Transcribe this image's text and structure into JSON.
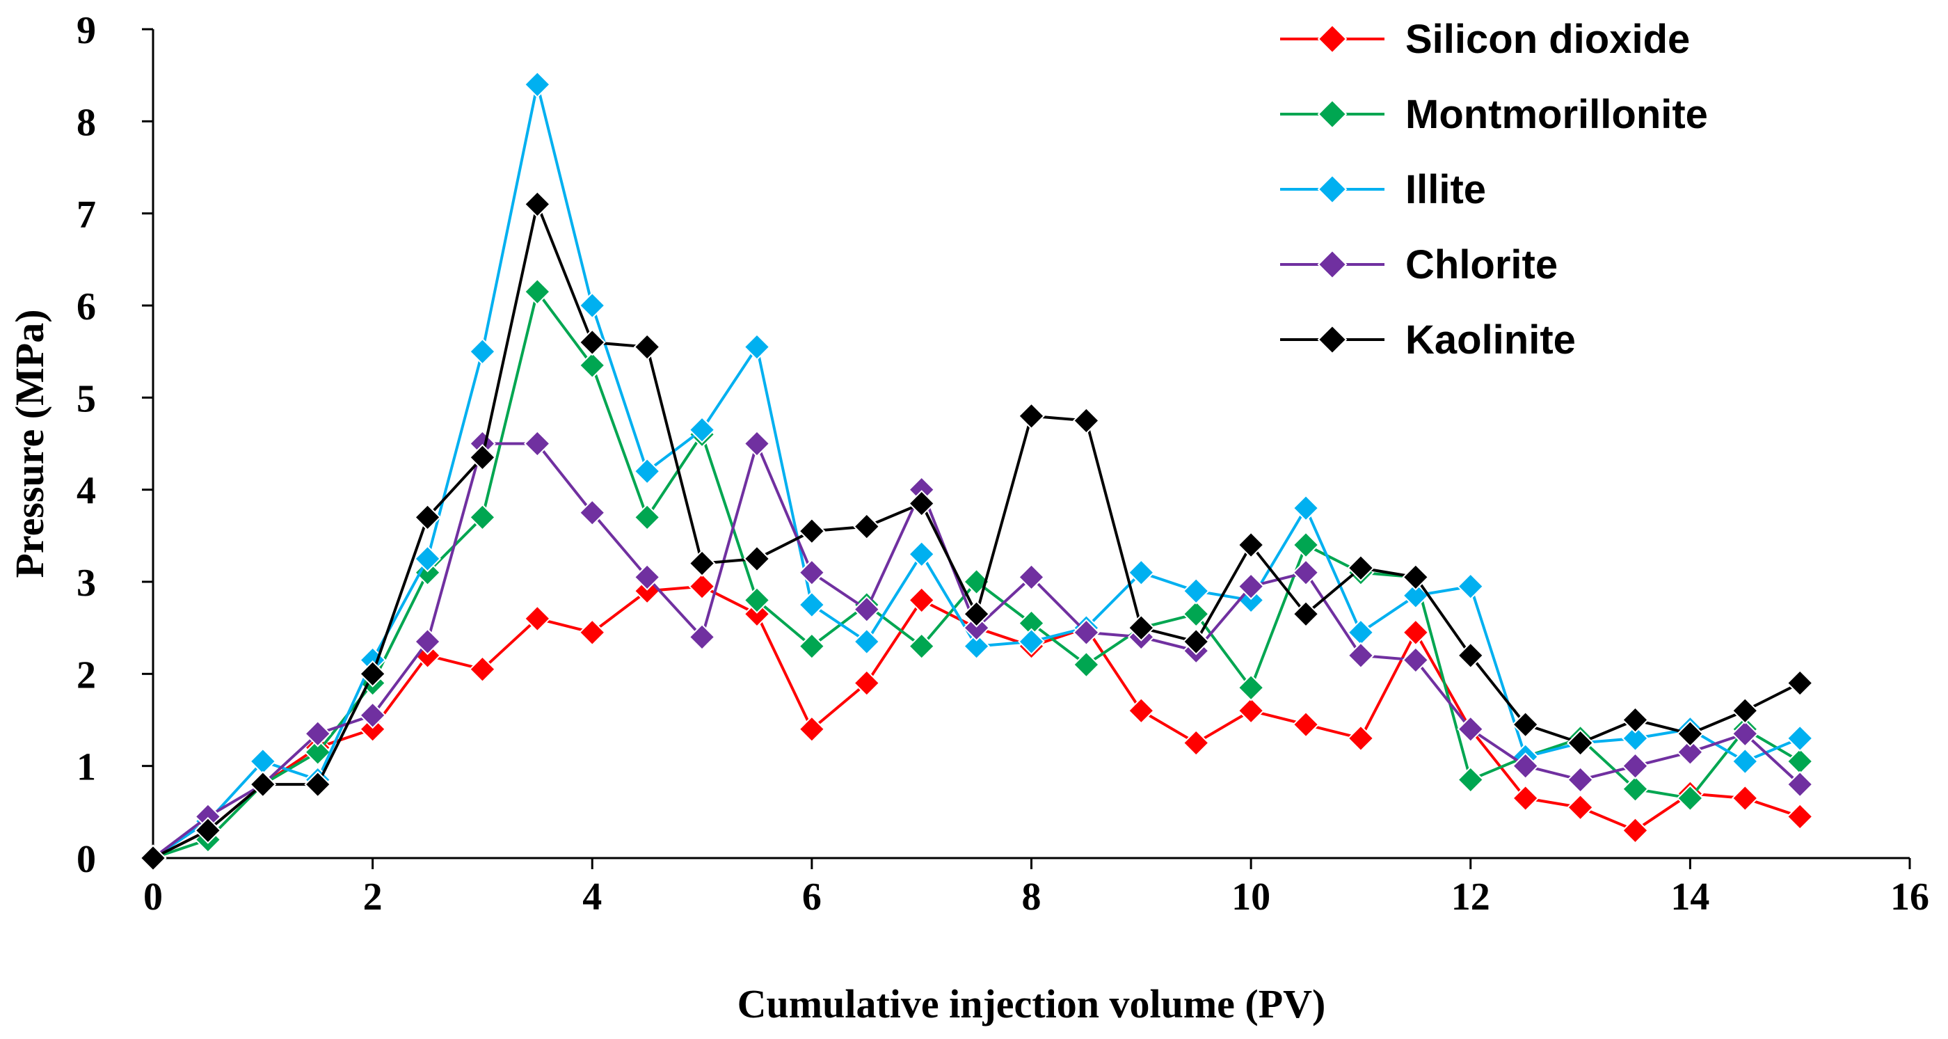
{
  "chart_data": {
    "type": "line",
    "title": "",
    "xlabel": "Cumulative injection volume (PV)",
    "ylabel": "Pressure (MPa)",
    "xlim": [
      0,
      16
    ],
    "ylim": [
      0,
      9
    ],
    "xticks": [
      0,
      2,
      4,
      6,
      8,
      10,
      12,
      14,
      16
    ],
    "yticks": [
      0,
      1,
      2,
      3,
      4,
      5,
      6,
      7,
      8,
      9
    ],
    "grid": false,
    "legend": "top-right",
    "marker": "diamond",
    "x": [
      0,
      0.5,
      1,
      1.5,
      2,
      2.5,
      3,
      3.5,
      4,
      4.5,
      5,
      5.5,
      6,
      6.5,
      7,
      7.5,
      8,
      8.5,
      9,
      9.5,
      10,
      10.5,
      11,
      11.5,
      12,
      12.5,
      13,
      13.5,
      14,
      14.5,
      15
    ],
    "series": [
      {
        "name": "Silicon dioxide",
        "color": "#ff0000",
        "values": [
          0,
          0.3,
          0.8,
          1.2,
          1.4,
          2.2,
          2.05,
          2.6,
          2.45,
          2.9,
          2.95,
          2.65,
          1.4,
          1.9,
          2.8,
          2.5,
          2.3,
          2.5,
          1.6,
          1.25,
          1.6,
          1.45,
          1.3,
          2.45,
          1.4,
          0.65,
          0.55,
          0.3,
          0.7,
          0.65,
          0.45
        ]
      },
      {
        "name": "Montmorillonite",
        "color": "#00a651",
        "values": [
          0,
          0.2,
          0.8,
          1.15,
          1.9,
          3.1,
          3.7,
          6.15,
          5.35,
          3.7,
          4.6,
          2.8,
          2.3,
          2.75,
          2.3,
          3.0,
          2.55,
          2.1,
          2.5,
          2.65,
          1.85,
          3.4,
          3.1,
          3.05,
          0.85,
          1.1,
          1.3,
          0.75,
          0.65,
          1.4,
          1.05
        ]
      },
      {
        "name": "Illite",
        "color": "#00b0f0",
        "values": [
          0,
          0.4,
          1.05,
          0.85,
          2.15,
          3.25,
          5.5,
          8.4,
          6.0,
          4.2,
          4.65,
          5.55,
          2.75,
          2.35,
          3.3,
          2.3,
          2.35,
          2.5,
          3.1,
          2.9,
          2.8,
          3.8,
          2.45,
          2.85,
          2.95,
          1.1,
          1.25,
          1.3,
          1.4,
          1.05,
          1.3
        ]
      },
      {
        "name": "Chlorite",
        "color": "#7030a0",
        "values": [
          0,
          0.45,
          0.8,
          1.35,
          1.55,
          2.35,
          4.5,
          4.5,
          3.75,
          3.05,
          2.4,
          4.5,
          3.1,
          2.7,
          4.0,
          2.5,
          3.05,
          2.45,
          2.4,
          2.25,
          2.95,
          3.1,
          2.2,
          2.15,
          1.4,
          1.0,
          0.85,
          1.0,
          1.15,
          1.35,
          0.8
        ]
      },
      {
        "name": "Kaolinite",
        "color": "#000000",
        "values": [
          0,
          0.3,
          0.8,
          0.8,
          2.0,
          3.7,
          4.35,
          7.1,
          5.6,
          5.55,
          3.2,
          3.25,
          3.55,
          3.6,
          3.85,
          2.65,
          4.8,
          4.75,
          2.5,
          2.35,
          3.4,
          2.65,
          3.15,
          3.05,
          2.2,
          1.45,
          1.25,
          1.5,
          1.35,
          1.6,
          1.9
        ]
      }
    ]
  }
}
